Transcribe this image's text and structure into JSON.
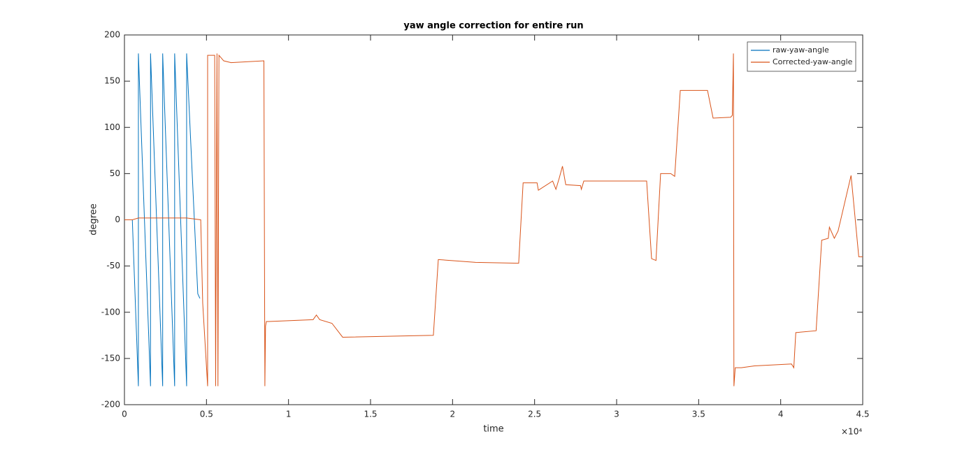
{
  "chart_data": {
    "type": "line",
    "title": "yaw angle correction for entire run",
    "xlabel": "time",
    "ylabel": "degree",
    "x_multiplier": "×10⁴",
    "xlim": [
      0,
      45000
    ],
    "ylim": [
      -200,
      200
    ],
    "xticks": [
      0,
      {
        "value": 5000,
        "label": "0.5"
      },
      {
        "value": 10000,
        "label": "1"
      },
      {
        "value": 15000,
        "label": "1.5"
      },
      {
        "value": 20000,
        "label": "2"
      },
      {
        "value": 25000,
        "label": "2.5"
      },
      {
        "value": 30000,
        "label": "3"
      },
      {
        "value": 35000,
        "label": "3.5"
      },
      {
        "value": 40000,
        "label": "4"
      },
      {
        "value": 45000,
        "label": "4.5"
      }
    ],
    "yticks": [
      -200,
      -150,
      -100,
      -50,
      0,
      50,
      100,
      150,
      200
    ],
    "legend": "northeast",
    "series": [
      {
        "name": "raw-yaw-angle",
        "color": "#0072bd",
        "x": [
          0,
          480,
          850,
          850,
          1590,
          1590,
          2330,
          2330,
          3060,
          3060,
          3790,
          3790,
          4470,
          4600
        ],
        "values": [
          0,
          0,
          -180,
          180,
          -180,
          180,
          -180,
          180,
          -180,
          180,
          -180,
          180,
          -80,
          -85
        ]
      },
      {
        "name": "Corrected-yaw-angle",
        "color": "#d95319",
        "x": [
          0,
          480,
          850,
          1590,
          2330,
          3060,
          3790,
          4650,
          4770,
          5070,
          5070,
          5500,
          5560,
          5640,
          5700,
          5760,
          6050,
          6500,
          8500,
          8560,
          8600,
          8650,
          8800,
          11500,
          11700,
          11900,
          12650,
          13300,
          18830,
          19130,
          21400,
          24030,
          24300,
          25150,
          25230,
          26100,
          26300,
          26500,
          26700,
          26900,
          27800,
          27850,
          28000,
          28500,
          31830,
          32130,
          32400,
          32680,
          33300,
          33540,
          33880,
          35540,
          35880,
          36950,
          37050,
          37120,
          37150,
          37230,
          37600,
          38400,
          40660,
          40800,
          40920,
          42160,
          42500,
          42900,
          42970,
          43270,
          43500,
          44290,
          44760,
          45000
        ],
        "values": [
          0,
          0,
          2,
          2,
          2,
          2,
          2,
          0,
          -90,
          -180,
          178,
          178,
          -180,
          180,
          -180,
          178,
          172,
          170,
          172,
          -180,
          -115,
          -110,
          -110,
          -108,
          -103,
          -108,
          -112,
          -127,
          -125,
          -43,
          -46,
          -47,
          40,
          40,
          32,
          42,
          33,
          45,
          58,
          38,
          37,
          33,
          42,
          42,
          42,
          -42,
          -44,
          50,
          50,
          47,
          140,
          140,
          110,
          111,
          113,
          180,
          -180,
          -160,
          -160,
          -158,
          -156,
          -160,
          -122,
          -120,
          -22,
          -20,
          -8,
          -20,
          -12,
          48,
          -40,
          -40
        ]
      }
    ]
  }
}
